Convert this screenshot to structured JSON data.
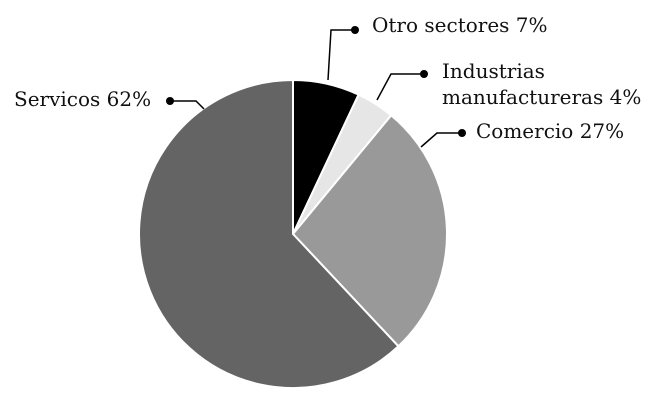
{
  "chart_data": {
    "type": "pie",
    "categories": [
      "Otro sectores",
      "Industrias manufactureras",
      "Comercio",
      "Servicos"
    ],
    "values": [
      7,
      4,
      27,
      62
    ],
    "value_labels": [
      "7%",
      "4%",
      "27%",
      "62%"
    ],
    "colors": [
      "#000000",
      "#e6e6e6",
      "#999999",
      "#656464"
    ]
  }
}
